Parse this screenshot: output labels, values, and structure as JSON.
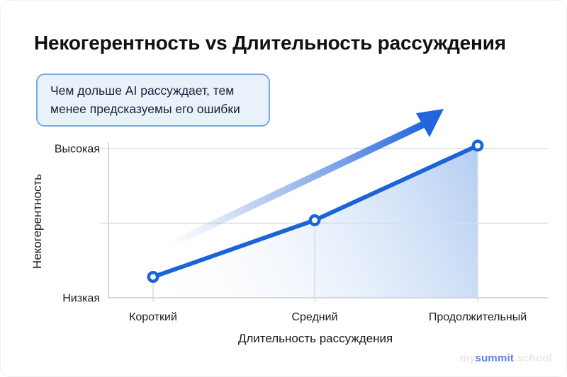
{
  "page": {
    "title": "Некогерентность vs Длительность рассуждения"
  },
  "callout": {
    "text": "Чем дольше AI рассуждает, тем менее предсказуемы его ошибки"
  },
  "chart_data": {
    "type": "line",
    "title": "Некогерентность vs Длительность рассуждения",
    "categories": [
      "Короткий",
      "Средний",
      "Продолжительный"
    ],
    "values": [
      0.14,
      0.52,
      1.02
    ],
    "value_scale_note": "0 = Низкая, 1 = Высокая",
    "xlabel": "Длительность рассуждения",
    "ylabel": "Некогерентность",
    "y_tick_labels": {
      "top": "Высокая",
      "bottom": "Низкая"
    },
    "ylim": [
      0,
      1.05
    ],
    "grid": true,
    "grid_y_values": [
      0.5,
      1.0
    ],
    "legend": false,
    "line_color": "#1b64d8",
    "point_fill": "#ffffff",
    "grid_color": "#d9dde3",
    "axis_color": "#c9cdd4",
    "area_fill": true,
    "annotation": {
      "kind": "trend-arrow",
      "direction": "up-right"
    }
  },
  "watermark": {
    "prefix": "my",
    "brand": "summit",
    "suffix": ".school"
  },
  "colors": {
    "accent_blue": "#1b64d8",
    "callout_bg": "#e9f1fa",
    "callout_border": "#77a9dc",
    "watermark_blue": "#5b82d8"
  }
}
